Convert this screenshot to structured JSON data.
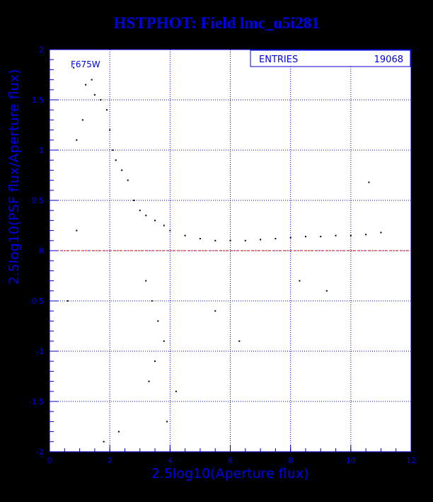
{
  "title": "HSTPHOT: Field lmc_u5i281",
  "colors": {
    "background": "#ffffff",
    "axis": "#0000cc",
    "grid": "#0000cc",
    "points": "#000000",
    "zero_line": "#cc0000",
    "title": "#0000ee"
  },
  "chart_data": {
    "type": "scatter",
    "title": "HSTPHOT: Field lmc_u5i281",
    "xlabel": "2.5log10(Aperture flux)",
    "ylabel": "2.5log10(PSF flux/Aperture flux)",
    "xlim": [
      0,
      12
    ],
    "ylim": [
      -2,
      2
    ],
    "x_ticks": [
      "0",
      "2",
      "4",
      "6",
      "8",
      "10",
      "12"
    ],
    "y_ticks": [
      "2",
      "1.5",
      "1",
      "0.5",
      "0",
      "-0.5",
      "-1",
      "-1.5",
      "-2"
    ],
    "grid": true,
    "reference_line_y": 0,
    "filter_label": "F675W",
    "stats": {
      "label": "ENTRIES",
      "value": "19068"
    },
    "series": [
      {
        "points": [
          [
            0.8,
            1.82
          ],
          [
            1.2,
            1.65
          ],
          [
            1.4,
            1.7
          ],
          [
            1.5,
            1.55
          ],
          [
            1.7,
            1.5
          ],
          [
            0.9,
            1.1
          ],
          [
            1.1,
            1.3
          ],
          [
            1.9,
            1.4
          ],
          [
            2.0,
            1.2
          ],
          [
            2.1,
            1.0
          ],
          [
            2.2,
            0.9
          ],
          [
            2.4,
            0.8
          ],
          [
            2.6,
            0.7
          ],
          [
            2.8,
            0.5
          ],
          [
            3.0,
            0.4
          ],
          [
            3.2,
            0.35
          ],
          [
            3.5,
            0.3
          ],
          [
            3.8,
            0.25
          ],
          [
            4.0,
            0.2
          ],
          [
            4.5,
            0.15
          ],
          [
            5.0,
            0.12
          ],
          [
            5.5,
            0.1
          ],
          [
            6.0,
            0.1
          ],
          [
            6.5,
            0.1
          ],
          [
            7.0,
            0.11
          ],
          [
            7.5,
            0.12
          ],
          [
            8.0,
            0.13
          ],
          [
            8.5,
            0.14
          ],
          [
            9.0,
            0.14
          ],
          [
            9.5,
            0.15
          ],
          [
            10.0,
            0.15
          ],
          [
            10.5,
            0.16
          ],
          [
            11.0,
            0.18
          ],
          [
            10.6,
            0.68
          ],
          [
            3.2,
            -0.3
          ],
          [
            3.4,
            -0.5
          ],
          [
            3.6,
            -0.7
          ],
          [
            3.8,
            -0.9
          ],
          [
            3.5,
            -1.1
          ],
          [
            3.3,
            -1.3
          ],
          [
            4.2,
            -1.4
          ],
          [
            3.9,
            -1.7
          ],
          [
            2.3,
            -1.8
          ],
          [
            1.8,
            -1.9
          ],
          [
            0.6,
            -0.5
          ],
          [
            0.9,
            0.2
          ],
          [
            5.5,
            -0.6
          ],
          [
            6.3,
            -0.9
          ],
          [
            8.3,
            -0.3
          ],
          [
            9.2,
            -0.4
          ]
        ]
      }
    ]
  }
}
